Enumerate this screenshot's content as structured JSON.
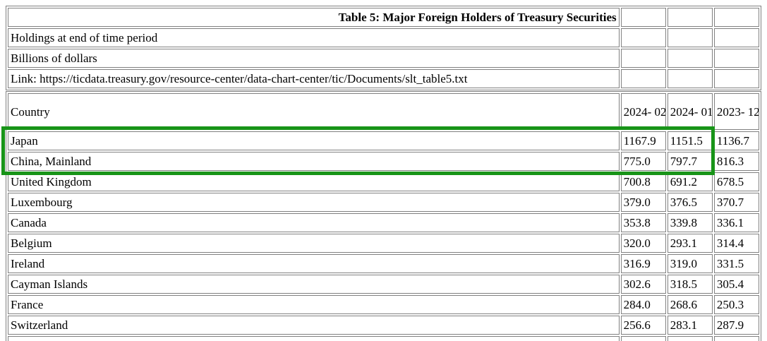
{
  "meta": {
    "title": "Table 5: Major Foreign Holders of Treasury Securities",
    "holdings_note": "Holdings at end of time period",
    "units_note": "Billions of dollars",
    "link_line": "Link: https://ticdata.treasury.gov/resource-center/data-chart-center/tic/Documents/slt_table5.txt"
  },
  "table": {
    "country_header": "Country",
    "period_headers": [
      "2024-\n02",
      "2024-\n01",
      "2023-\n12"
    ],
    "rows": [
      {
        "country": "Japan",
        "values": [
          "1167.9",
          "1151.5",
          "1136.7"
        ],
        "highlighted": true
      },
      {
        "country": "China, Mainland",
        "values": [
          "775.0",
          "797.7",
          "816.3"
        ],
        "highlighted": true
      },
      {
        "country": "United Kingdom",
        "values": [
          "700.8",
          "691.2",
          "678.5"
        ],
        "highlighted": false
      },
      {
        "country": "Luxembourg",
        "values": [
          "379.0",
          "376.5",
          "370.7"
        ],
        "highlighted": false
      },
      {
        "country": "Canada",
        "values": [
          "353.8",
          "339.8",
          "336.1"
        ],
        "highlighted": false
      },
      {
        "country": "Belgium",
        "values": [
          "320.0",
          "293.1",
          "314.4"
        ],
        "highlighted": false
      },
      {
        "country": "Ireland",
        "values": [
          "316.9",
          "319.0",
          "331.5"
        ],
        "highlighted": false
      },
      {
        "country": "Cayman Islands",
        "values": [
          "302.6",
          "318.5",
          "305.4"
        ],
        "highlighted": false
      },
      {
        "country": "France",
        "values": [
          "284.0",
          "268.6",
          "250.3"
        ],
        "highlighted": false
      },
      {
        "country": "Switzerland",
        "values": [
          "256.6",
          "283.1",
          "287.9"
        ],
        "highlighted": false
      }
    ]
  },
  "highlight": {
    "border_color": "#189418",
    "highlighted_countries": [
      "Japan",
      "China, Mainland"
    ]
  }
}
